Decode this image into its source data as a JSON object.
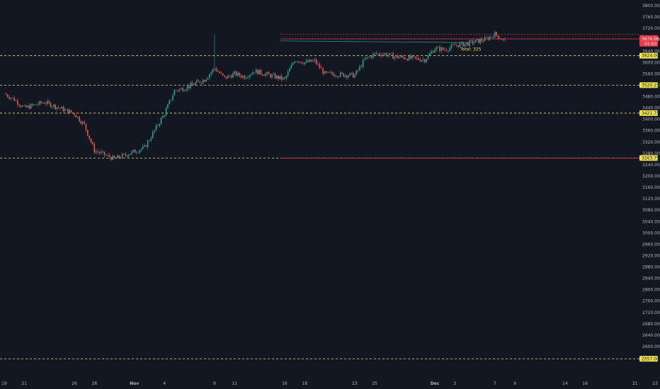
{
  "chart_data": {
    "type": "candlestick",
    "title": "",
    "xlabel": "",
    "ylabel": "",
    "ylim": [
      2540,
      3820
    ],
    "y_ticks": [
      3800,
      3760,
      3720,
      3680,
      3640,
      3600,
      3560,
      3520,
      3480,
      3440,
      3400,
      3360,
      3320,
      3280,
      3240,
      3200,
      3160,
      3120,
      3080,
      3040,
      3000,
      2960,
      2920,
      2880,
      2840,
      2800,
      2760,
      2720,
      2680,
      2640,
      2600
    ],
    "y_tick_labels": [
      "3800.00",
      "3760.00",
      "3720.00",
      "3680.00",
      "3640.00",
      "3600.00",
      "3560.00",
      "3520.00",
      "3480.00",
      "3440.00",
      "3400.00",
      "3360.00",
      "3320.00",
      "3280.00",
      "3240.00",
      "3200.00",
      "3160.00",
      "3120.00",
      "3080.00",
      "3040.00",
      "3000.00",
      "2960.00",
      "2920.00",
      "2880.00",
      "2840.00",
      "2800.00",
      "2760.00",
      "2720.00",
      "2680.00",
      "2640.00",
      "2600.00"
    ],
    "x_ticks": [
      "19",
      "21",
      "26",
      "28",
      "Nov",
      "4",
      "9",
      "11",
      "16",
      "18",
      "23",
      "25",
      "Dec",
      "3",
      "7",
      "9",
      "14",
      "16",
      "21",
      "23"
    ],
    "x_tick_dates": [
      "2020-10-19",
      "2020-10-21",
      "2020-10-26",
      "2020-10-28",
      "2020-11-01",
      "2020-11-04",
      "2020-11-09",
      "2020-11-11",
      "2020-11-16",
      "2020-11-18",
      "2020-11-23",
      "2020-11-25",
      "2020-12-01",
      "2020-12-03",
      "2020-12-07",
      "2020-12-09",
      "2020-12-14",
      "2020-12-16",
      "2020-12-21",
      "2020-12-23"
    ],
    "x_tick_bold": [
      "Nov",
      "Dec"
    ],
    "price_path": [
      {
        "date": "2020-10-19",
        "value": 3490
      },
      {
        "date": "2020-10-20",
        "value": 3470
      },
      {
        "date": "2020-10-21",
        "value": 3440
      },
      {
        "date": "2020-10-22",
        "value": 3450
      },
      {
        "date": "2020-10-23",
        "value": 3460
      },
      {
        "date": "2020-10-26",
        "value": 3420
      },
      {
        "date": "2020-10-27",
        "value": 3380
      },
      {
        "date": "2020-10-28",
        "value": 3290
      },
      {
        "date": "2020-10-29",
        "value": 3275
      },
      {
        "date": "2020-10-30",
        "value": 3260
      },
      {
        "date": "2020-11-02",
        "value": 3300
      },
      {
        "date": "2020-11-03",
        "value": 3360
      },
      {
        "date": "2020-11-04",
        "value": 3420
      },
      {
        "date": "2020-11-05",
        "value": 3500
      },
      {
        "date": "2020-11-06",
        "value": 3510
      },
      {
        "date": "2020-11-08",
        "value": 3540
      },
      {
        "date": "2020-11-09",
        "value": 3580
      },
      {
        "date": "2020-11-10",
        "value": 3545
      },
      {
        "date": "2020-11-11",
        "value": 3560
      },
      {
        "date": "2020-11-12",
        "value": 3550
      },
      {
        "date": "2020-11-13",
        "value": 3570
      },
      {
        "date": "2020-11-16",
        "value": 3540
      },
      {
        "date": "2020-11-17",
        "value": 3610
      },
      {
        "date": "2020-11-18",
        "value": 3600
      },
      {
        "date": "2020-11-19",
        "value": 3605
      },
      {
        "date": "2020-11-20",
        "value": 3560
      },
      {
        "date": "2020-11-23",
        "value": 3555
      },
      {
        "date": "2020-11-24",
        "value": 3610
      },
      {
        "date": "2020-11-25",
        "value": 3630
      },
      {
        "date": "2020-11-26",
        "value": 3630
      },
      {
        "date": "2020-11-27",
        "value": 3620
      },
      {
        "date": "2020-11-30",
        "value": 3610
      },
      {
        "date": "2020-12-01",
        "value": 3650
      },
      {
        "date": "2020-12-02",
        "value": 3645
      },
      {
        "date": "2020-12-03",
        "value": 3660
      },
      {
        "date": "2020-12-04",
        "value": 3665
      },
      {
        "date": "2020-12-06",
        "value": 3680
      },
      {
        "date": "2020-12-07",
        "value": 3700
      },
      {
        "date": "2020-12-08",
        "value": 3676
      }
    ],
    "levels": [
      {
        "value": 3624.0,
        "label": "3624.00",
        "color": "#f0e24b"
      },
      {
        "value": 3520.25,
        "label": "3520.25",
        "color": "#f0e24b"
      },
      {
        "value": 3421.75,
        "label": "3421.75",
        "color": "#f0e24b"
      },
      {
        "value": 3263.75,
        "label": "3263.75",
        "color": "#f0e24b"
      },
      {
        "value": 2557.0,
        "label": "2557.00",
        "color": "#f0e24b"
      }
    ],
    "last_price": {
      "value": 3676.0,
      "label": "3676.00",
      "countdown": "01:03",
      "color": "#f23645"
    },
    "measure": {
      "label": "Total: 325",
      "from": "2020-11-17",
      "to": "2020-12-31"
    },
    "colors": {
      "up": "#26a69a",
      "down": "#ef5350",
      "background": "#131722",
      "axis_text": "#b2b5be",
      "level": "#f0e24b"
    }
  }
}
